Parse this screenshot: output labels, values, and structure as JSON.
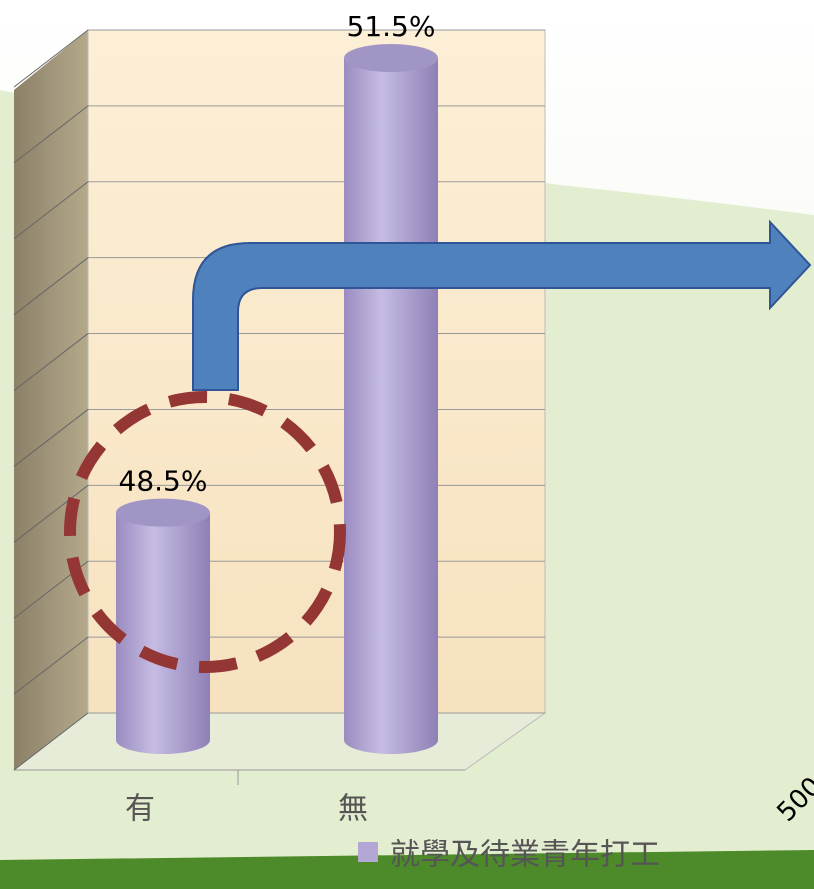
{
  "chart_data": {
    "type": "bar",
    "categories": [
      "有",
      "無"
    ],
    "series": [
      {
        "name": "就學及待業青年打工",
        "color": "#b4a7d6",
        "values": [
          48.5,
          51.5
        ],
        "value_labels": [
          "48.5%",
          "51.5%"
        ]
      }
    ],
    "ylim": [
      47,
      51.5
    ],
    "yticks": [
      47,
      47.5,
      48,
      48.5,
      49,
      49.5,
      50,
      50.5,
      51,
      51.5
    ],
    "grid": true,
    "annotation": "500"
  }
}
